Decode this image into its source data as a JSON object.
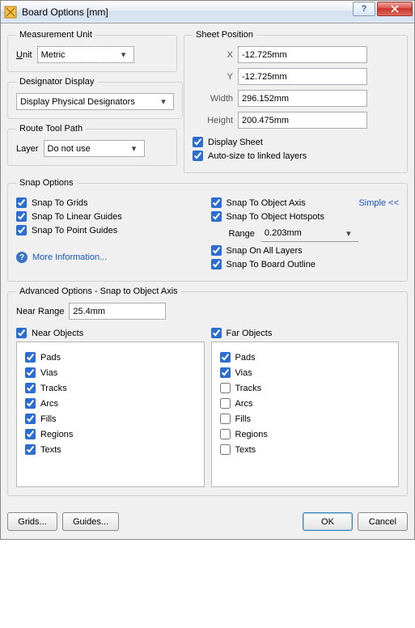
{
  "window": {
    "title": "Board Options [mm]"
  },
  "measurement": {
    "legend": "Measurement Unit",
    "unit_label": "Unit",
    "unit_value": "Metric"
  },
  "designator": {
    "legend": "Designator Display",
    "value": "Display Physical Designators"
  },
  "route": {
    "legend": "Route Tool Path",
    "layer_label": "Layer",
    "layer_value": "Do not use"
  },
  "sheet": {
    "legend": "Sheet Position",
    "x_label": "X",
    "x_value": "-12.725mm",
    "y_label": "Y",
    "y_value": "-12.725mm",
    "w_label": "Width",
    "w_value": "296.152mm",
    "h_label": "Height",
    "h_value": "200.475mm",
    "display_sheet": "Display Sheet",
    "auto_size": "Auto-size to linked layers"
  },
  "snap": {
    "legend": "Snap Options",
    "grids": "Snap To Grids",
    "linear": "Snap To Linear Guides",
    "point": "Snap To Point Guides",
    "obj_axis": "Snap To Object Axis",
    "obj_hotspots": "Snap To Object Hotspots",
    "range_label": "Range",
    "range_value": "0.203mm",
    "all_layers": "Snap On All Layers",
    "board_outline": "Snap To Board Outline",
    "more_info": "More Information...",
    "simple": "Simple <<"
  },
  "advanced": {
    "legend": "Advanced Options - Snap to Object Axis",
    "near_range_label": "Near Range",
    "near_range_value": "25.4mm",
    "near_objects": "Near Objects",
    "far_objects": "Far Objects",
    "items": {
      "pads": "Pads",
      "vias": "Vias",
      "tracks": "Tracks",
      "arcs": "Arcs",
      "fills": "Fills",
      "regions": "Regions",
      "texts": "Texts"
    },
    "near_checked": {
      "pads": true,
      "vias": true,
      "tracks": true,
      "arcs": true,
      "fills": true,
      "regions": true,
      "texts": true
    },
    "far_checked": {
      "pads": true,
      "vias": true,
      "tracks": false,
      "arcs": false,
      "fills": false,
      "regions": false,
      "texts": false
    }
  },
  "buttons": {
    "grids": "Grids...",
    "guides": "Guides...",
    "ok": "OK",
    "cancel": "Cancel"
  },
  "colors": {
    "link": "#1a56c8",
    "close_bg": "#c93127"
  }
}
